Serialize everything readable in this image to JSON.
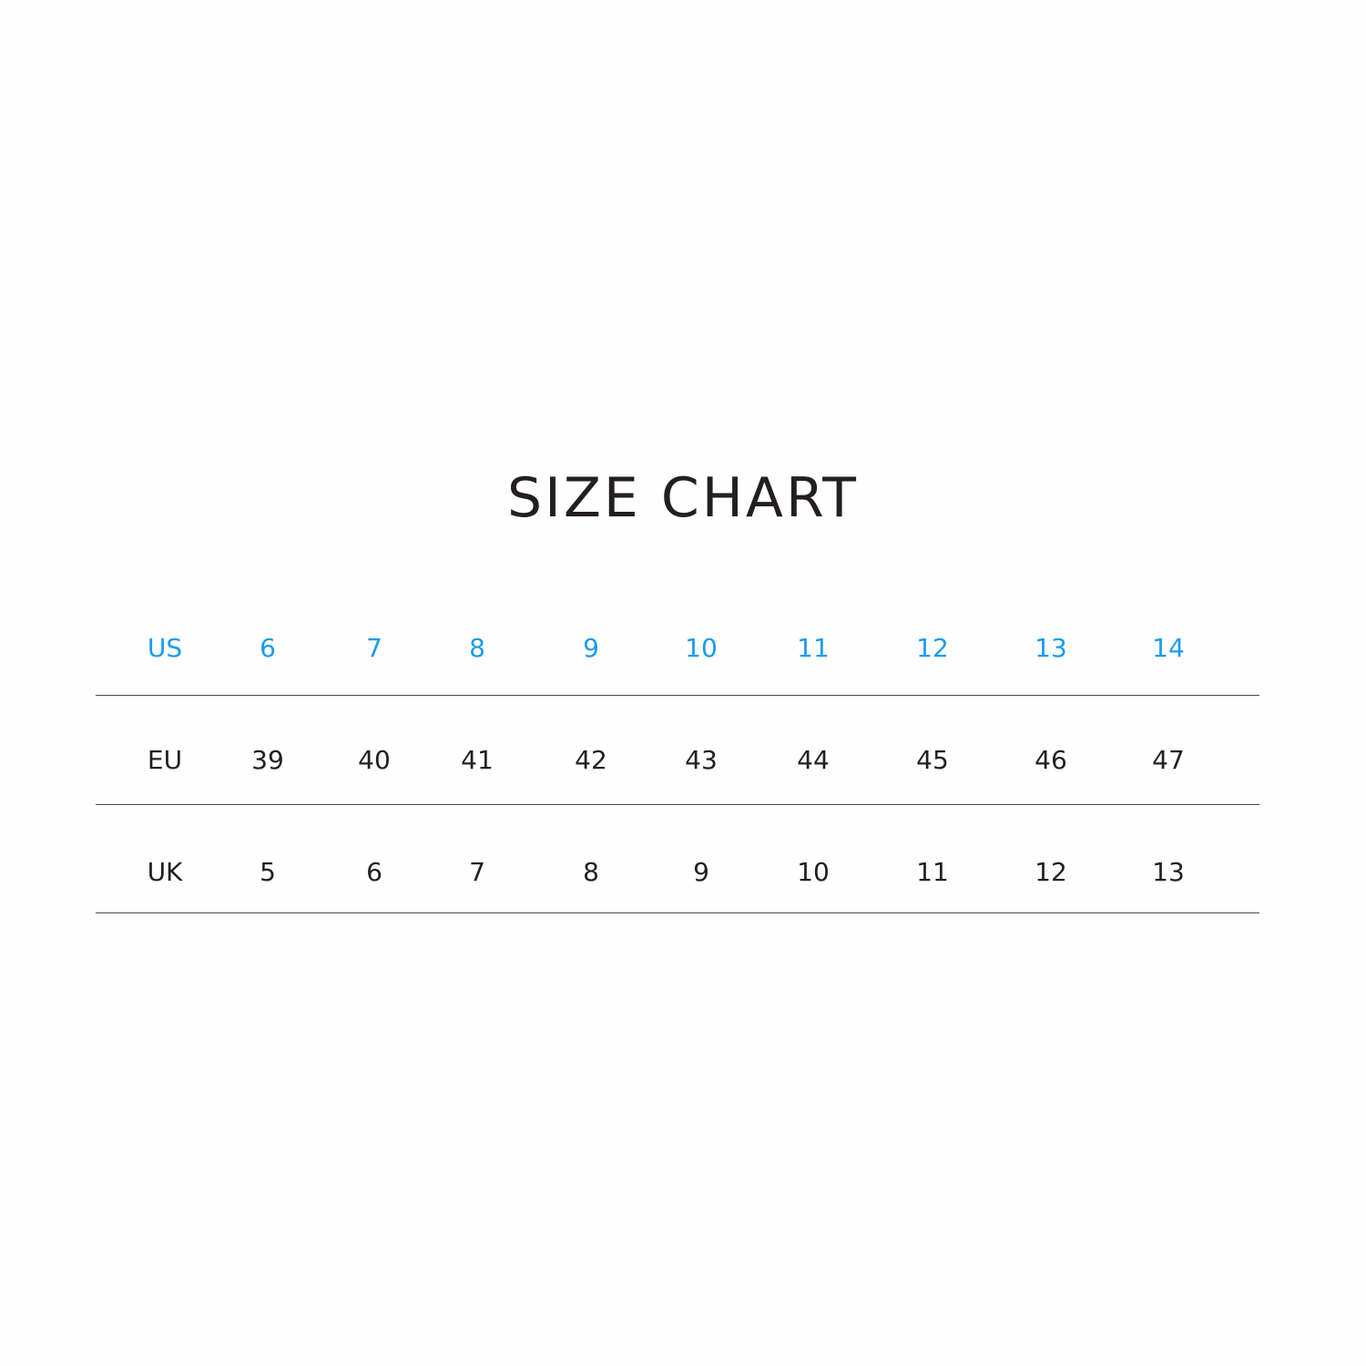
{
  "title": "SIZE CHART",
  "accent_color": "#1a9bf0",
  "rows": [
    {
      "label": "US",
      "values": [
        "6",
        "7",
        "8",
        "9",
        "10",
        "11",
        "12",
        "13",
        "14"
      ]
    },
    {
      "label": "EU",
      "values": [
        "39",
        "40",
        "41",
        "42",
        "43",
        "44",
        "45",
        "46",
        "47"
      ]
    },
    {
      "label": "UK",
      "values": [
        "5",
        "6",
        "7",
        "8",
        "9",
        "10",
        "11",
        "12",
        "13"
      ]
    }
  ]
}
